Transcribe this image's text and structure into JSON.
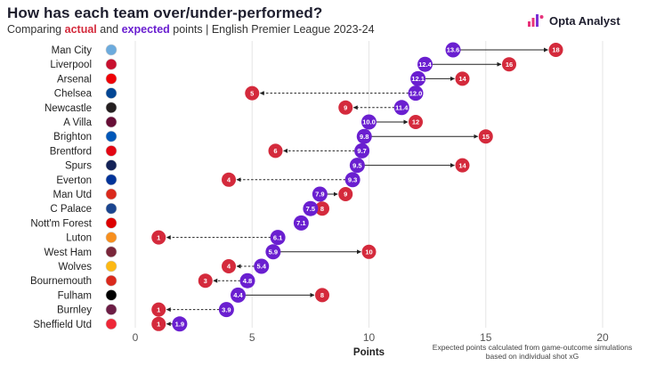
{
  "header": {
    "title": "How has each team over/under-performed?",
    "subtitle_prefix": "Comparing",
    "subtitle_actual": "actual",
    "subtitle_and": "and",
    "subtitle_expected": "expected",
    "subtitle_suffix": "points | English Premier League 2023-24",
    "brand": "Opta Analyst"
  },
  "colors": {
    "actual": "#d42a3c",
    "expected": "#6a1fd0",
    "arrow": "#222222",
    "grid": "#e6e6e6"
  },
  "footnote": "Expected points calculated from game-outcome simulations based on individual shot xG",
  "chart_data": {
    "type": "dumbbell",
    "title": "How has each team over/under-performed?",
    "subtitle": "Comparing actual and expected points | English Premier League 2023-24",
    "xlabel": "Points",
    "xlim": [
      0,
      20
    ],
    "xticks": [
      0,
      5,
      10,
      15,
      20
    ],
    "grid": true,
    "series": [
      {
        "name": "expected",
        "color": "#6a1fd0"
      },
      {
        "name": "actual",
        "color": "#d42a3c"
      }
    ],
    "categories": [
      "Man City",
      "Liverpool",
      "Arsenal",
      "Chelsea",
      "Newcastle",
      "A Villa",
      "Brighton",
      "Brentford",
      "Spurs",
      "Everton",
      "Man Utd",
      "C Palace",
      "Nott'm Forest",
      "Luton",
      "West Ham",
      "Wolves",
      "Bournemouth",
      "Fulham",
      "Burnley",
      "Sheffield Utd"
    ],
    "expected": [
      13.6,
      12.4,
      12.1,
      12.0,
      11.4,
      10.0,
      9.8,
      9.7,
      9.5,
      9.3,
      7.9,
      7.5,
      7.1,
      6.1,
      5.9,
      5.4,
      4.8,
      4.4,
      3.9,
      1.9
    ],
    "actual": [
      18,
      16,
      14,
      5,
      9,
      12,
      15,
      6,
      14,
      4,
      9,
      8,
      7,
      1,
      10,
      4,
      3,
      8,
      1,
      1
    ],
    "expected_labels": [
      "13.6",
      "12.4",
      "12.1",
      "12.0",
      "11.4",
      "10.0",
      "9.8",
      "9.7",
      "9.5",
      "9.3",
      "7.9",
      "7.5",
      "7.1",
      "6.1",
      "5.9",
      "5.4",
      "4.8",
      "4.4",
      "3.9",
      "1.9"
    ],
    "actual_labels": [
      "18",
      "16",
      "14",
      "5",
      "9",
      "12",
      "15",
      "6",
      "14",
      "4",
      "9",
      "8",
      "",
      "1",
      "10",
      "4",
      "3",
      "8",
      "1",
      "1"
    ],
    "badge_colors": [
      "#6cabdd",
      "#c8102e",
      "#ef0107",
      "#034694",
      "#241f20",
      "#670e36",
      "#0057b8",
      "#e30613",
      "#132257",
      "#003399",
      "#da291c",
      "#1b458f",
      "#dd0000",
      "#f78f1e",
      "#7a263a",
      "#fdb913",
      "#da291c",
      "#000000",
      "#6c1d45",
      "#ee2737"
    ]
  }
}
